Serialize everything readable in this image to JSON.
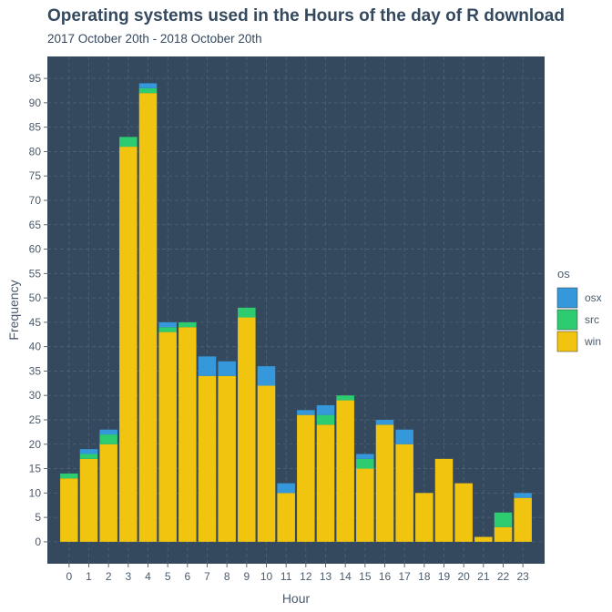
{
  "chart_data": {
    "type": "bar",
    "stacked": true,
    "title": "Operating systems used in the Hours of the day of R download",
    "subtitle": "2017 October 20th - 2018 October 20th",
    "xlabel": "Hour",
    "ylabel": "Frequency",
    "categories": [
      "0",
      "1",
      "2",
      "3",
      "4",
      "5",
      "6",
      "7",
      "8",
      "9",
      "10",
      "11",
      "12",
      "13",
      "14",
      "15",
      "16",
      "17",
      "18",
      "19",
      "20",
      "21",
      "22",
      "23"
    ],
    "series": [
      {
        "name": "win",
        "color": "#f1c40f",
        "values": [
          13,
          17,
          20,
          81,
          92,
          43,
          44,
          34,
          34,
          46,
          32,
          10,
          26,
          24,
          29,
          15,
          24,
          20,
          10,
          17,
          12,
          1,
          3,
          9
        ]
      },
      {
        "name": "src",
        "color": "#2ecc71",
        "values": [
          1,
          1,
          2,
          2,
          1,
          1,
          1,
          0,
          0,
          2,
          0,
          0,
          0,
          2,
          1,
          2,
          0,
          0,
          0,
          0,
          0,
          0,
          3,
          0
        ]
      },
      {
        "name": "osx",
        "color": "#3498db",
        "values": [
          0,
          1,
          1,
          0,
          1,
          1,
          0,
          4,
          3,
          0,
          4,
          2,
          1,
          2,
          0,
          1,
          1,
          3,
          0,
          0,
          0,
          0,
          0,
          1
        ]
      }
    ],
    "stack_order": [
      "win",
      "src",
      "osx"
    ],
    "ylim": [
      -4.5,
      99.5
    ],
    "yticks": [
      0,
      5,
      10,
      15,
      20,
      25,
      30,
      35,
      40,
      45,
      50,
      55,
      60,
      65,
      70,
      75,
      80,
      85,
      90,
      95
    ],
    "grid": true,
    "legend": {
      "title": "os",
      "position": "right",
      "items": [
        {
          "label": "osx",
          "color": "#3498db"
        },
        {
          "label": "src",
          "color": "#2ecc71"
        },
        {
          "label": "win",
          "color": "#f1c40f"
        }
      ]
    },
    "colors": {
      "panel": "#34495e",
      "grid": "#4f6378",
      "axis_text": "#4a5b6e",
      "title": "#34495e"
    }
  }
}
